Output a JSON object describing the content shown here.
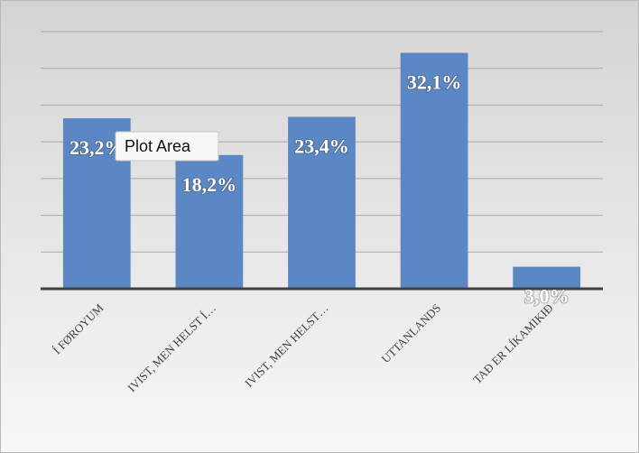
{
  "chart_data": {
    "type": "bar",
    "categories": [
      "Í FØROYUM",
      "IVIST, MEN HELST Í…",
      "IVIST, MEN HELST…",
      "UTTANLANDS",
      "TAÐ ER LÍKAMIKIÐ"
    ],
    "values": [
      23.2,
      18.2,
      23.4,
      32.1,
      3.0
    ],
    "value_labels": [
      "23,2%",
      "18,2%",
      "23,4%",
      "32,1%",
      "3,0%"
    ],
    "color": "#5b87c4",
    "ylim": [
      0,
      35
    ],
    "yticks": [
      0,
      5,
      10,
      15,
      20,
      25,
      30,
      35
    ],
    "grid": true
  },
  "tooltip": "Plot Area"
}
